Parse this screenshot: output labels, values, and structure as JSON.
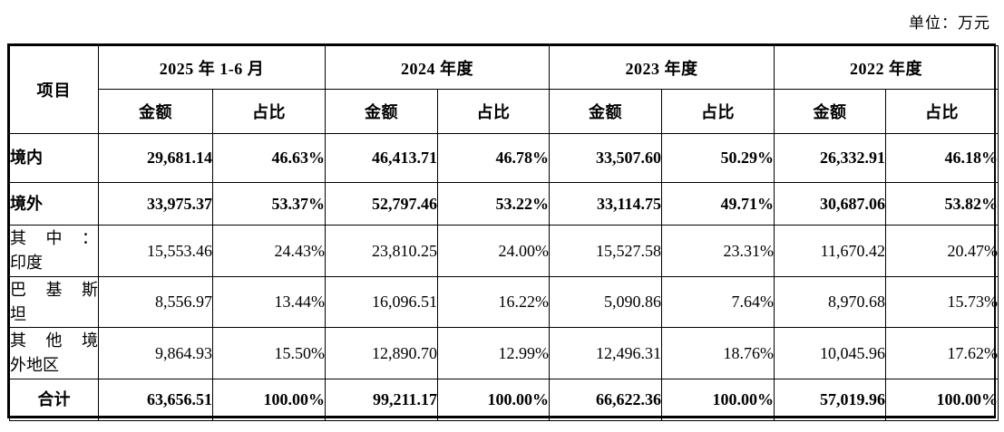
{
  "unit_note": "单位：万元",
  "colors": {
    "text": "#000000",
    "border": "#000000",
    "background": "#ffffff"
  },
  "table": {
    "item_header": "项目",
    "periods": [
      {
        "label": "2025 年 1-6 月",
        "sub": [
          "金额",
          "占比"
        ]
      },
      {
        "label": "2024 年度",
        "sub": [
          "金额",
          "占比"
        ]
      },
      {
        "label": "2023 年度",
        "sub": [
          "金额",
          "占比"
        ]
      },
      {
        "label": "2022 年度",
        "sub": [
          "金额",
          "占比"
        ]
      }
    ],
    "rows": [
      {
        "label": "境内",
        "bold": true,
        "values": [
          "29,681.14",
          "46.63%",
          "46,413.71",
          "46.78%",
          "33,507.60",
          "50.29%",
          "26,332.91",
          "46.18%"
        ]
      },
      {
        "label": "境外",
        "bold": true,
        "values": [
          "33,975.37",
          "53.37%",
          "52,797.46",
          "53.22%",
          "33,114.75",
          "49.71%",
          "30,687.06",
          "53.82%"
        ]
      },
      {
        "label": "其中：\n印度",
        "bold": false,
        "values": [
          "15,553.46",
          "24.43%",
          "23,810.25",
          "24.00%",
          "15,527.58",
          "23.31%",
          "11,670.42",
          "20.47%"
        ]
      },
      {
        "label": "巴基斯\n坦",
        "bold": false,
        "values": [
          "8,556.97",
          "13.44%",
          "16,096.51",
          "16.22%",
          "5,090.86",
          "7.64%",
          "8,970.68",
          "15.73%"
        ]
      },
      {
        "label": "其他境\n外地区",
        "bold": false,
        "values": [
          "9,864.93",
          "15.50%",
          "12,890.70",
          "12.99%",
          "12,496.31",
          "18.76%",
          "10,045.96",
          "17.62%"
        ]
      },
      {
        "label": "合计",
        "bold": true,
        "values": [
          "63,656.51",
          "100.00%",
          "99,211.17",
          "100.00%",
          "66,622.36",
          "100.00%",
          "57,019.96",
          "100.00%"
        ]
      }
    ]
  }
}
